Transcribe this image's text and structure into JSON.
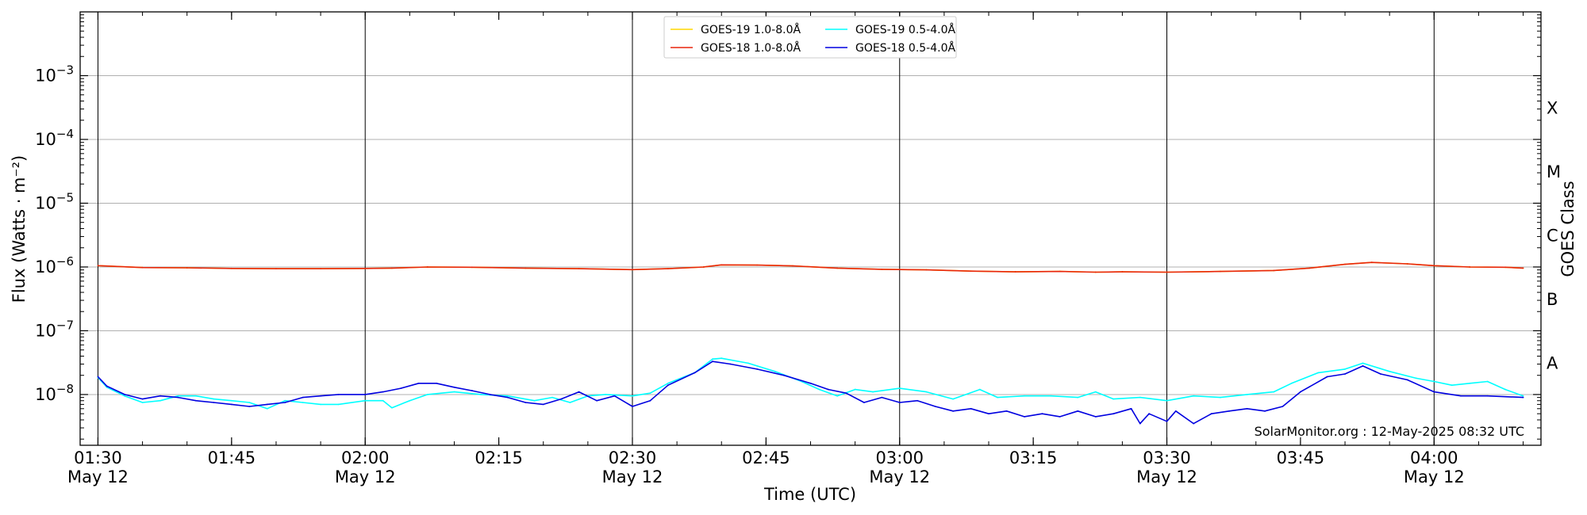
{
  "chart_data": {
    "type": "line",
    "xlabel": "Time (UTC)",
    "ylabel": "Flux (Watts · m⁻²)",
    "ylabel_right": "GOES Class",
    "y_scale": "log",
    "ylim": [
      1.6e-09,
      0.01
    ],
    "xlim": [
      "01:28",
      "04:12"
    ],
    "grid": "horizontal at decades; vertical lines every 30 min",
    "legend_position": "top-center",
    "credit": "SolarMonitor.org : 12-May-2025 08:32 UTC",
    "x_ticks": [
      {
        "time": "01:30",
        "label": "01:30",
        "sub": "May 12"
      },
      {
        "time": "01:45",
        "label": "01:45",
        "sub": ""
      },
      {
        "time": "02:00",
        "label": "02:00",
        "sub": "May 12"
      },
      {
        "time": "02:15",
        "label": "02:15",
        "sub": ""
      },
      {
        "time": "02:30",
        "label": "02:30",
        "sub": "May 12"
      },
      {
        "time": "02:45",
        "label": "02:45",
        "sub": ""
      },
      {
        "time": "03:00",
        "label": "03:00",
        "sub": "May 12"
      },
      {
        "time": "03:15",
        "label": "03:15",
        "sub": ""
      },
      {
        "time": "03:30",
        "label": "03:30",
        "sub": "May 12"
      },
      {
        "time": "03:45",
        "label": "03:45",
        "sub": ""
      },
      {
        "time": "04:00",
        "label": "04:00",
        "sub": "May 12"
      }
    ],
    "y_ticks": [
      {
        "exp": -3,
        "value": 0.001
      },
      {
        "exp": -4,
        "value": 0.0001
      },
      {
        "exp": -5,
        "value": 1e-05
      },
      {
        "exp": -6,
        "value": 1e-06
      },
      {
        "exp": -7,
        "value": 1e-07
      },
      {
        "exp": -8,
        "value": 1e-08
      }
    ],
    "goes_classes": [
      {
        "label": "X",
        "low": 0.0001,
        "high": 0.001
      },
      {
        "label": "M",
        "low": 1e-05,
        "high": 0.0001
      },
      {
        "label": "C",
        "low": 1e-06,
        "high": 1e-05
      },
      {
        "label": "B",
        "low": 1e-07,
        "high": 1e-06
      },
      {
        "label": "A",
        "low": 1e-08,
        "high": 1e-07
      }
    ],
    "legend": [
      {
        "name": "GOES-19 1.0-8.0Å",
        "color": "#ffd700"
      },
      {
        "name": "GOES-19 0.5-4.0Å",
        "color": "#00ffff"
      },
      {
        "name": "GOES-18 1.0-8.0Å",
        "color": "#e8250c"
      },
      {
        "name": "GOES-18 0.5-4.0Å",
        "color": "#0000e0"
      }
    ],
    "series": [
      {
        "name": "GOES-19 1.0-8.0Å",
        "color": "#ffd700",
        "points": [
          [
            "01:30",
            1.05e-06
          ],
          [
            "01:35",
            9.8e-07
          ],
          [
            "01:40",
            9.7e-07
          ],
          [
            "01:45",
            9.5e-07
          ],
          [
            "01:50",
            9.4e-07
          ],
          [
            "01:55",
            9.4e-07
          ],
          [
            "02:00",
            9.5e-07
          ],
          [
            "02:03",
            9.6e-07
          ],
          [
            "02:07",
            1e-06
          ],
          [
            "02:12",
            9.9e-07
          ],
          [
            "02:18",
            9.6e-07
          ],
          [
            "02:24",
            9.4e-07
          ],
          [
            "02:30",
            9.1e-07
          ],
          [
            "02:34",
            9.4e-07
          ],
          [
            "02:38",
            1e-06
          ],
          [
            "02:40",
            1.08e-06
          ],
          [
            "02:44",
            1.07e-06
          ],
          [
            "02:48",
            1.04e-06
          ],
          [
            "02:53",
            9.6e-07
          ],
          [
            "02:58",
            9.2e-07
          ],
          [
            "03:03",
            9e-07
          ],
          [
            "03:08",
            8.6e-07
          ],
          [
            "03:13",
            8.4e-07
          ],
          [
            "03:18",
            8.5e-07
          ],
          [
            "03:22",
            8.3e-07
          ],
          [
            "03:25",
            8.4e-07
          ],
          [
            "03:30",
            8.3e-07
          ],
          [
            "03:36",
            8.5e-07
          ],
          [
            "03:42",
            8.8e-07
          ],
          [
            "03:46",
            9.6e-07
          ],
          [
            "03:50",
            1.1e-06
          ],
          [
            "03:53",
            1.18e-06
          ],
          [
            "03:57",
            1.12e-06
          ],
          [
            "04:00",
            1.05e-06
          ],
          [
            "04:04",
            1e-06
          ],
          [
            "04:08",
            9.9e-07
          ],
          [
            "04:10",
            9.6e-07
          ]
        ]
      },
      {
        "name": "GOES-18 1.0-8.0Å",
        "color": "#e8250c",
        "points": [
          [
            "01:30",
            1.05e-06
          ],
          [
            "01:35",
            9.8e-07
          ],
          [
            "01:40",
            9.7e-07
          ],
          [
            "01:45",
            9.5e-07
          ],
          [
            "01:50",
            9.4e-07
          ],
          [
            "01:55",
            9.4e-07
          ],
          [
            "02:00",
            9.5e-07
          ],
          [
            "02:03",
            9.6e-07
          ],
          [
            "02:07",
            1e-06
          ],
          [
            "02:12",
            9.9e-07
          ],
          [
            "02:18",
            9.6e-07
          ],
          [
            "02:24",
            9.4e-07
          ],
          [
            "02:30",
            9.1e-07
          ],
          [
            "02:34",
            9.4e-07
          ],
          [
            "02:38",
            1e-06
          ],
          [
            "02:40",
            1.08e-06
          ],
          [
            "02:44",
            1.07e-06
          ],
          [
            "02:48",
            1.04e-06
          ],
          [
            "02:53",
            9.6e-07
          ],
          [
            "02:58",
            9.2e-07
          ],
          [
            "03:03",
            9e-07
          ],
          [
            "03:08",
            8.6e-07
          ],
          [
            "03:13",
            8.4e-07
          ],
          [
            "03:18",
            8.5e-07
          ],
          [
            "03:22",
            8.3e-07
          ],
          [
            "03:25",
            8.4e-07
          ],
          [
            "03:30",
            8.3e-07
          ],
          [
            "03:36",
            8.5e-07
          ],
          [
            "03:42",
            8.8e-07
          ],
          [
            "03:46",
            9.6e-07
          ],
          [
            "03:50",
            1.1e-06
          ],
          [
            "03:53",
            1.18e-06
          ],
          [
            "03:57",
            1.12e-06
          ],
          [
            "04:00",
            1.05e-06
          ],
          [
            "04:04",
            1e-06
          ],
          [
            "04:08",
            9.9e-07
          ],
          [
            "04:10",
            9.6e-07
          ]
        ]
      },
      {
        "name": "GOES-19 0.5-4.0Å",
        "color": "#00ffff",
        "points": [
          [
            "01:30",
            1.85e-08
          ],
          [
            "01:31",
            1.3e-08
          ],
          [
            "01:33",
            9.5e-09
          ],
          [
            "01:35",
            7.5e-09
          ],
          [
            "01:37",
            8e-09
          ],
          [
            "01:39",
            9.5e-09
          ],
          [
            "01:41",
            9.5e-09
          ],
          [
            "01:43",
            8.5e-09
          ],
          [
            "01:45",
            8e-09
          ],
          [
            "01:47",
            7.5e-09
          ],
          [
            "01:49",
            6e-09
          ],
          [
            "01:51",
            8e-09
          ],
          [
            "01:53",
            7.5e-09
          ],
          [
            "01:55",
            7e-09
          ],
          [
            "01:57",
            7e-09
          ],
          [
            "02:00",
            8e-09
          ],
          [
            "02:02",
            8e-09
          ],
          [
            "02:03",
            6.2e-09
          ],
          [
            "02:05",
            8e-09
          ],
          [
            "02:07",
            1e-08
          ],
          [
            "02:10",
            1.1e-08
          ],
          [
            "02:13",
            1e-08
          ],
          [
            "02:16",
            9.5e-09
          ],
          [
            "02:19",
            8e-09
          ],
          [
            "02:21",
            9e-09
          ],
          [
            "02:23",
            7.5e-09
          ],
          [
            "02:25",
            9.5e-09
          ],
          [
            "02:27",
            1e-08
          ],
          [
            "02:30",
            9.5e-09
          ],
          [
            "02:32",
            1.05e-08
          ],
          [
            "02:34",
            1.5e-08
          ],
          [
            "02:37",
            2.2e-08
          ],
          [
            "02:39",
            3.6e-08
          ],
          [
            "02:40",
            3.7e-08
          ],
          [
            "02:43",
            3.1e-08
          ],
          [
            "02:46",
            2.3e-08
          ],
          [
            "02:49",
            1.6e-08
          ],
          [
            "02:51",
            1.2e-08
          ],
          [
            "02:53",
            9.5e-09
          ],
          [
            "02:55",
            1.2e-08
          ],
          [
            "02:57",
            1.1e-08
          ],
          [
            "03:00",
            1.25e-08
          ],
          [
            "03:03",
            1.1e-08
          ],
          [
            "03:06",
            8.5e-09
          ],
          [
            "03:09",
            1.2e-08
          ],
          [
            "03:11",
            9e-09
          ],
          [
            "03:14",
            9.5e-09
          ],
          [
            "03:17",
            9.5e-09
          ],
          [
            "03:20",
            9e-09
          ],
          [
            "03:22",
            1.1e-08
          ],
          [
            "03:24",
            8.5e-09
          ],
          [
            "03:27",
            9e-09
          ],
          [
            "03:30",
            8e-09
          ],
          [
            "03:33",
            9.5e-09
          ],
          [
            "03:36",
            9e-09
          ],
          [
            "03:39",
            1e-08
          ],
          [
            "03:42",
            1.1e-08
          ],
          [
            "03:44",
            1.5e-08
          ],
          [
            "03:47",
            2.2e-08
          ],
          [
            "03:50",
            2.5e-08
          ],
          [
            "03:52",
            3.1e-08
          ],
          [
            "03:55",
            2.3e-08
          ],
          [
            "03:58",
            1.8e-08
          ],
          [
            "04:00",
            1.6e-08
          ],
          [
            "04:02",
            1.4e-08
          ],
          [
            "04:04",
            1.5e-08
          ],
          [
            "04:06",
            1.6e-08
          ],
          [
            "04:08",
            1.2e-08
          ],
          [
            "04:10",
            9.5e-09
          ]
        ]
      },
      {
        "name": "GOES-18 0.5-4.0Å",
        "color": "#0000e0",
        "points": [
          [
            "01:30",
            1.9e-08
          ],
          [
            "01:31",
            1.35e-08
          ],
          [
            "01:33",
            1e-08
          ],
          [
            "01:35",
            8.5e-09
          ],
          [
            "01:37",
            9.5e-09
          ],
          [
            "01:39",
            9e-09
          ],
          [
            "01:41",
            8e-09
          ],
          [
            "01:43",
            7.5e-09
          ],
          [
            "01:45",
            7e-09
          ],
          [
            "01:47",
            6.5e-09
          ],
          [
            "01:49",
            7e-09
          ],
          [
            "01:51",
            7.5e-09
          ],
          [
            "01:53",
            9e-09
          ],
          [
            "01:55",
            9.5e-09
          ],
          [
            "01:57",
            1e-08
          ],
          [
            "02:00",
            1e-08
          ],
          [
            "02:02",
            1.1e-08
          ],
          [
            "02:04",
            1.25e-08
          ],
          [
            "02:06",
            1.5e-08
          ],
          [
            "02:08",
            1.5e-08
          ],
          [
            "02:10",
            1.3e-08
          ],
          [
            "02:12",
            1.15e-08
          ],
          [
            "02:14",
            1e-08
          ],
          [
            "02:16",
            9e-09
          ],
          [
            "02:18",
            7.5e-09
          ],
          [
            "02:20",
            7e-09
          ],
          [
            "02:22",
            8.5e-09
          ],
          [
            "02:24",
            1.1e-08
          ],
          [
            "02:26",
            8e-09
          ],
          [
            "02:28",
            9.5e-09
          ],
          [
            "02:30",
            6.5e-09
          ],
          [
            "02:32",
            8e-09
          ],
          [
            "02:34",
            1.4e-08
          ],
          [
            "02:37",
            2.2e-08
          ],
          [
            "02:39",
            3.3e-08
          ],
          [
            "02:41",
            3e-08
          ],
          [
            "02:44",
            2.5e-08
          ],
          [
            "02:47",
            2e-08
          ],
          [
            "02:50",
            1.5e-08
          ],
          [
            "02:52",
            1.2e-08
          ],
          [
            "02:54",
            1.05e-08
          ],
          [
            "02:56",
            7.5e-09
          ],
          [
            "02:58",
            9e-09
          ],
          [
            "03:00",
            7.5e-09
          ],
          [
            "03:02",
            8e-09
          ],
          [
            "03:04",
            6.5e-09
          ],
          [
            "03:06",
            5.5e-09
          ],
          [
            "03:08",
            6e-09
          ],
          [
            "03:10",
            5e-09
          ],
          [
            "03:12",
            5.5e-09
          ],
          [
            "03:14",
            4.5e-09
          ],
          [
            "03:16",
            5e-09
          ],
          [
            "03:18",
            4.5e-09
          ],
          [
            "03:20",
            5.5e-09
          ],
          [
            "03:22",
            4.5e-09
          ],
          [
            "03:24",
            5e-09
          ],
          [
            "03:26",
            6e-09
          ],
          [
            "03:27",
            3.5e-09
          ],
          [
            "03:28",
            5e-09
          ],
          [
            "03:30",
            3.8e-09
          ],
          [
            "03:31",
            5.5e-09
          ],
          [
            "03:33",
            3.5e-09
          ],
          [
            "03:35",
            5e-09
          ],
          [
            "03:37",
            5.5e-09
          ],
          [
            "03:39",
            6e-09
          ],
          [
            "03:41",
            5.5e-09
          ],
          [
            "03:43",
            6.5e-09
          ],
          [
            "03:45",
            1.1e-08
          ],
          [
            "03:48",
            1.9e-08
          ],
          [
            "03:50",
            2.1e-08
          ],
          [
            "03:52",
            2.8e-08
          ],
          [
            "03:54",
            2.1e-08
          ],
          [
            "03:57",
            1.7e-08
          ],
          [
            "04:00",
            1.1e-08
          ],
          [
            "04:03",
            9.5e-09
          ],
          [
            "04:06",
            9.5e-09
          ],
          [
            "04:10",
            9e-09
          ]
        ]
      }
    ]
  }
}
